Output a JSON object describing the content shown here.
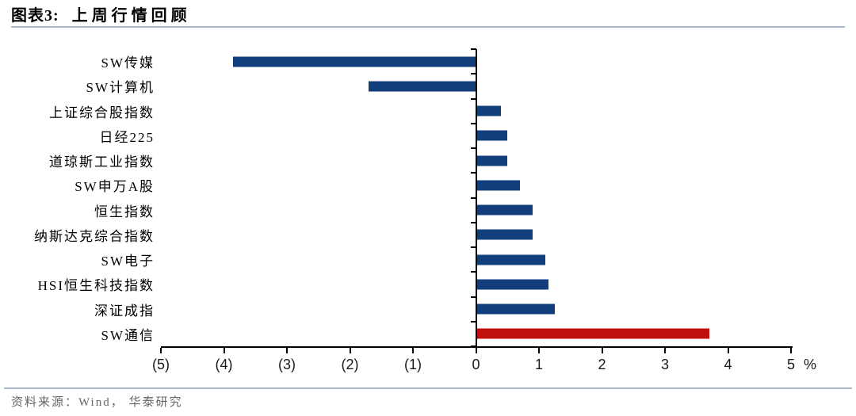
{
  "header": {
    "figure_label": "图表3:",
    "title": "上周行情回顾"
  },
  "footer": {
    "source": "资料来源：Wind， 华泰研究"
  },
  "colors": {
    "bar_default": "#123F7C",
    "bar_highlight": "#BF100D",
    "axis": "#000000",
    "divider": "#A8BAD0",
    "source_text": "#666666"
  },
  "chart_data": {
    "type": "bar",
    "orientation": "horizontal",
    "title": "上周行情回顾",
    "categories": [
      "SW传媒",
      "SW计算机",
      "上证综合股指数",
      "日经225",
      "道琼斯工业指数",
      "SW申万A股",
      "恒生指数",
      "纳斯达克综合指数",
      "SW电子",
      "HSI恒生科技指数",
      "深证成指",
      "SW通信"
    ],
    "values": [
      -3.85,
      -1.7,
      0.4,
      0.5,
      0.5,
      0.7,
      0.9,
      0.9,
      1.1,
      1.15,
      1.25,
      3.7
    ],
    "bar_colors": [
      "#123F7C",
      "#123F7C",
      "#123F7C",
      "#123F7C",
      "#123F7C",
      "#123F7C",
      "#123F7C",
      "#123F7C",
      "#123F7C",
      "#123F7C",
      "#123F7C",
      "#BF100D"
    ],
    "unit": "%",
    "xlim": [
      -5,
      5
    ],
    "x_ticks": [
      -5,
      -4,
      -3,
      -2,
      -1,
      0,
      1,
      2,
      3,
      4,
      5
    ],
    "x_tick_labels": [
      "(5)",
      "(4)",
      "(3)",
      "(2)",
      "(1)",
      "0",
      "1",
      "2",
      "3",
      "4",
      "5"
    ],
    "axis_unit_label": "%",
    "grid": false,
    "legend": false
  }
}
